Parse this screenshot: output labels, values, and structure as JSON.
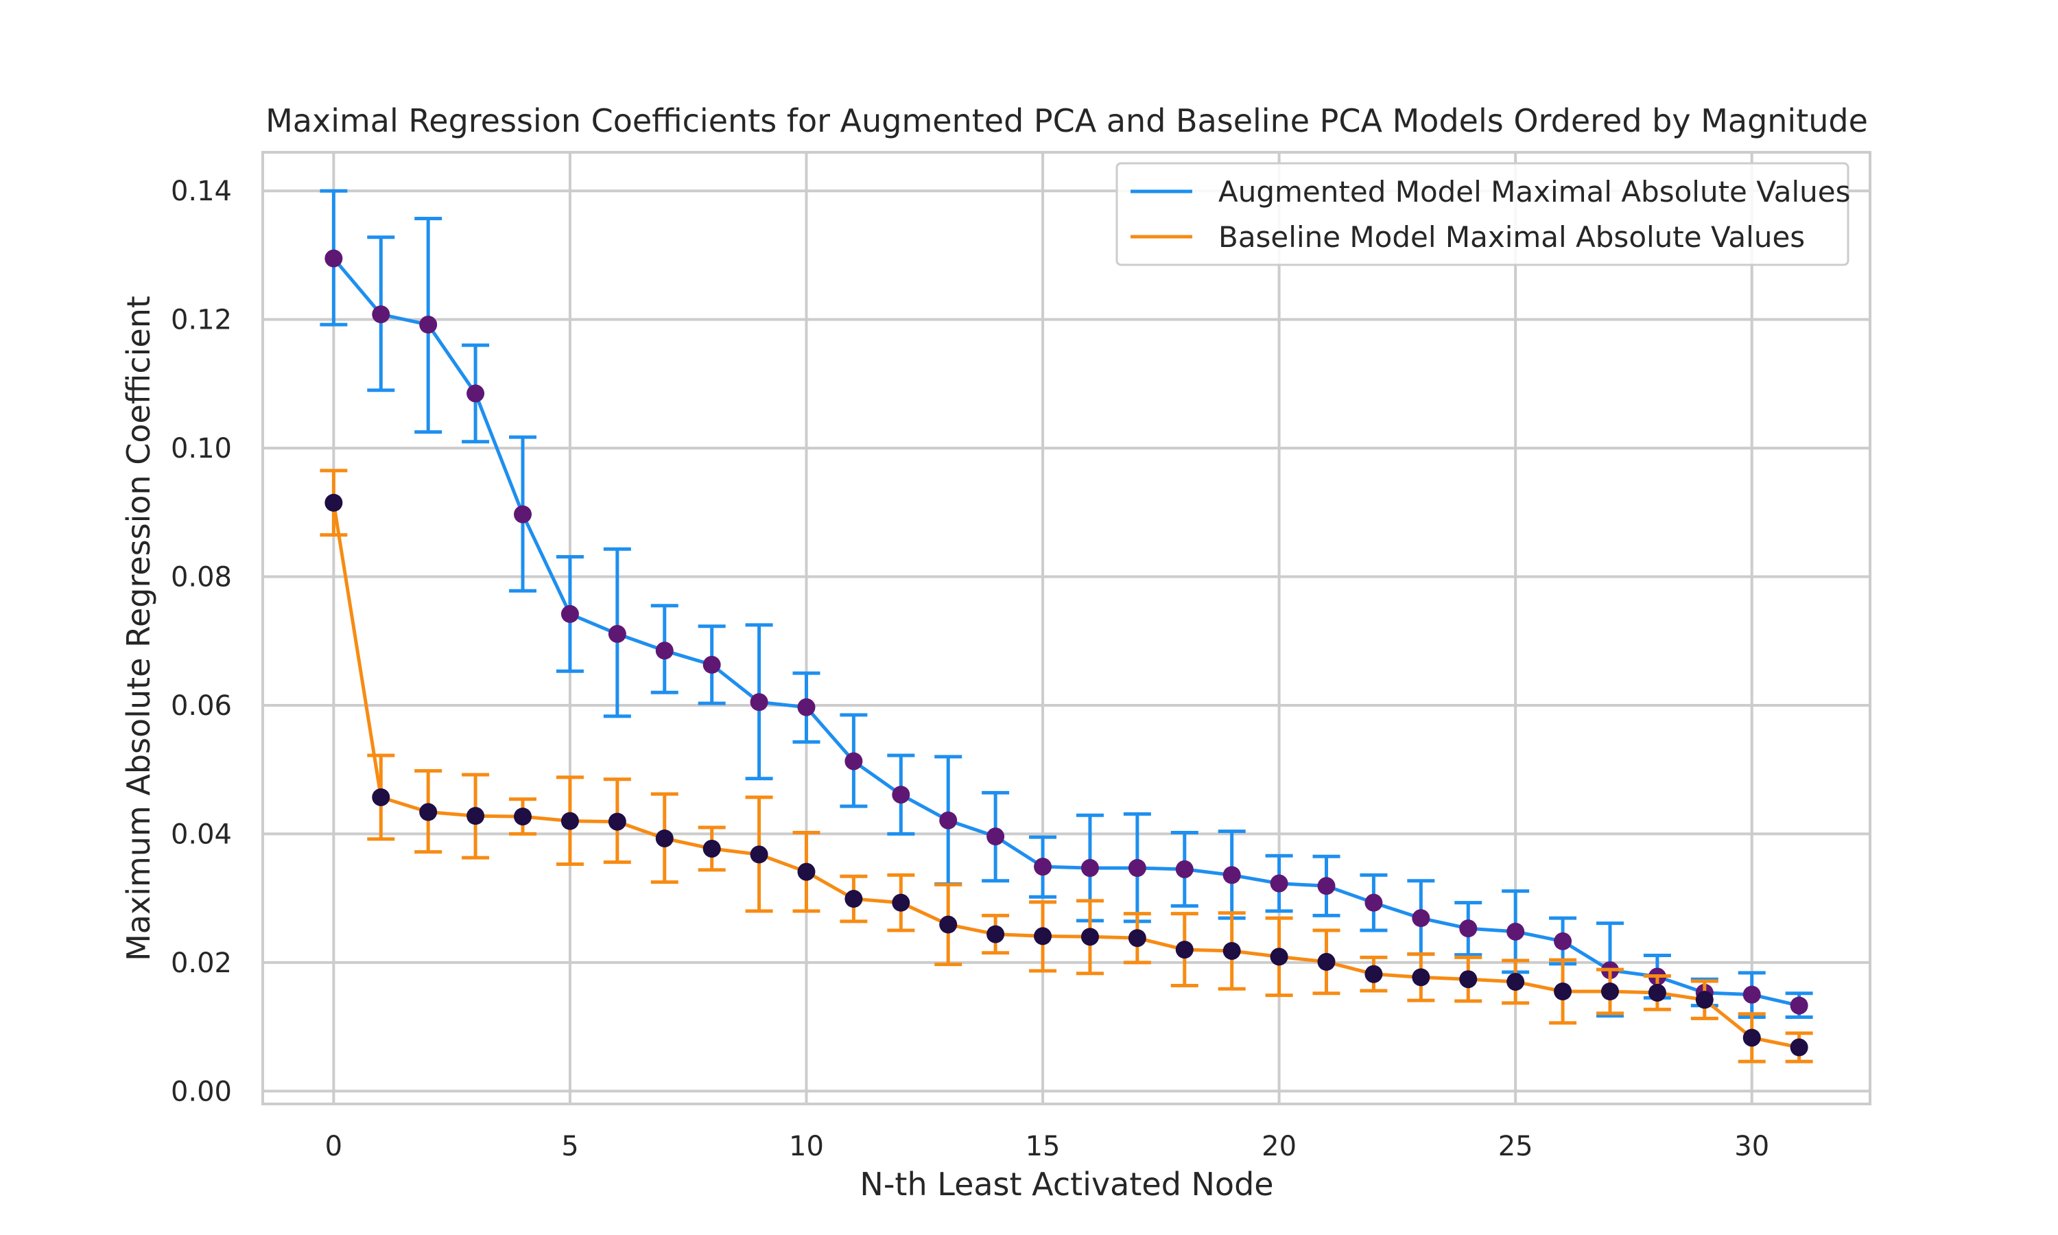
{
  "chart_data": {
    "type": "line",
    "title": "Maximal Regression Coefficients for Augmented PCA and Baseline PCA Models Ordered by Magnitude",
    "xlabel": "N-th Least Activated Node",
    "ylabel": "Maximum Absolute Regression Coefficient",
    "xlim": [
      -1.5,
      32.5
    ],
    "ylim": [
      -0.002,
      0.146
    ],
    "xticks": [
      0,
      5,
      10,
      15,
      20,
      25,
      30
    ],
    "yticks": [
      0.0,
      0.02,
      0.04,
      0.06,
      0.08,
      0.1,
      0.12,
      0.14
    ],
    "ytick_labels": [
      "0.00",
      "0.02",
      "0.04",
      "0.06",
      "0.08",
      "0.10",
      "0.12",
      "0.14"
    ],
    "grid": true,
    "legend_position": "top-right",
    "x": [
      0,
      1,
      2,
      3,
      4,
      5,
      6,
      7,
      8,
      9,
      10,
      11,
      12,
      13,
      14,
      15,
      16,
      17,
      18,
      19,
      20,
      21,
      22,
      23,
      24,
      25,
      26,
      27,
      28,
      29,
      30,
      31
    ],
    "series": [
      {
        "name": "Augmented Model Maximal Absolute Values",
        "line_color": "#1e8fef",
        "marker_color": "#5e1874",
        "values": [
          0.1295,
          0.1208,
          0.1192,
          0.1085,
          0.0897,
          0.0742,
          0.0711,
          0.0685,
          0.0663,
          0.0605,
          0.0597,
          0.0513,
          0.0461,
          0.0421,
          0.0396,
          0.0349,
          0.0347,
          0.0347,
          0.0345,
          0.0336,
          0.0323,
          0.0319,
          0.0293,
          0.0269,
          0.0253,
          0.0248,
          0.0233,
          0.0188,
          0.0178,
          0.0153,
          0.015,
          0.0133
        ],
        "lower": [
          0.1192,
          0.109,
          0.1025,
          0.101,
          0.0778,
          0.0653,
          0.0583,
          0.062,
          0.0603,
          0.0486,
          0.0543,
          0.0443,
          0.04,
          0.0322,
          0.0327,
          0.0302,
          0.0265,
          0.0264,
          0.0288,
          0.0269,
          0.028,
          0.0273,
          0.025,
          0.0213,
          0.0212,
          0.0185,
          0.0198,
          0.0117,
          0.0145,
          0.0133,
          0.0115,
          0.0115
        ],
        "upper": [
          0.14,
          0.1328,
          0.1357,
          0.116,
          0.1017,
          0.0831,
          0.0843,
          0.0755,
          0.0723,
          0.0725,
          0.065,
          0.0585,
          0.0522,
          0.052,
          0.0464,
          0.0395,
          0.0429,
          0.0431,
          0.0402,
          0.0404,
          0.0366,
          0.0365,
          0.0336,
          0.0327,
          0.0293,
          0.0311,
          0.0269,
          0.0261,
          0.0211,
          0.0174,
          0.0184,
          0.0152
        ]
      },
      {
        "name": "Baseline Model Maximal Absolute Values",
        "line_color": "#f78b13",
        "marker_color": "#1e0e44",
        "values": [
          0.0915,
          0.0457,
          0.0434,
          0.0428,
          0.0427,
          0.042,
          0.0419,
          0.0393,
          0.0377,
          0.0368,
          0.0341,
          0.0299,
          0.0293,
          0.0259,
          0.0244,
          0.0241,
          0.024,
          0.0238,
          0.022,
          0.0218,
          0.0209,
          0.0201,
          0.0182,
          0.0177,
          0.0174,
          0.017,
          0.0155,
          0.0155,
          0.0153,
          0.0142,
          0.0083,
          0.0068
        ],
        "lower": [
          0.0865,
          0.0392,
          0.0372,
          0.0363,
          0.04,
          0.0353,
          0.0356,
          0.0325,
          0.0344,
          0.028,
          0.028,
          0.0264,
          0.025,
          0.0197,
          0.0215,
          0.0187,
          0.0183,
          0.02,
          0.0164,
          0.0159,
          0.0149,
          0.0152,
          0.0156,
          0.0141,
          0.014,
          0.0137,
          0.0106,
          0.0121,
          0.0127,
          0.0113,
          0.0046,
          0.0046
        ],
        "upper": [
          0.0965,
          0.0522,
          0.0498,
          0.0492,
          0.0454,
          0.0488,
          0.0485,
          0.0462,
          0.041,
          0.0457,
          0.0402,
          0.0334,
          0.0336,
          0.0321,
          0.0273,
          0.0294,
          0.0296,
          0.0276,
          0.0276,
          0.0277,
          0.0269,
          0.025,
          0.0208,
          0.0213,
          0.0208,
          0.0203,
          0.0204,
          0.0189,
          0.0179,
          0.0171,
          0.012,
          0.009
        ]
      }
    ]
  }
}
